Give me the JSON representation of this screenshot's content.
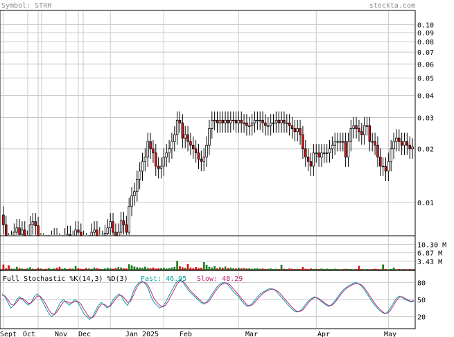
{
  "header": {
    "symbol_label": "Symbol: STRH",
    "brand": "stockta.com"
  },
  "colors": {
    "up_candle": "#ffffff",
    "down_candle": "#e01010",
    "volume_up": "#1e7d1e",
    "volume_down": "#e01010",
    "fast_line": "#00a0a0",
    "slow_line": "#c0207a",
    "grid": "#c8c8c8",
    "header_text": "#8a8a8a"
  },
  "chart_data": [
    {
      "type": "candlestick",
      "title": "",
      "y_scale": "log",
      "ylim": [
        0.0065,
        0.12
      ],
      "y_ticks": [
        {
          "value": 0.1,
          "label": "0.10"
        },
        {
          "value": 0.09,
          "label": "0.09"
        },
        {
          "value": 0.08,
          "label": "0.08"
        },
        {
          "value": 0.07,
          "label": "0.07"
        },
        {
          "value": 0.06,
          "label": "0.06"
        },
        {
          "value": 0.05,
          "label": "0.05"
        },
        {
          "value": 0.04,
          "label": "0.04"
        },
        {
          "value": 0.03,
          "label": "0.03"
        },
        {
          "value": 0.02,
          "label": "0.02"
        },
        {
          "value": 0.01,
          "label": "0.01"
        }
      ],
      "x_labels": [
        "Sept",
        "Oct",
        "Nov",
        "Dec",
        "Jan 2025",
        "Feb",
        "Mar",
        "Apr",
        "May"
      ],
      "grid": true,
      "series": {
        "open": [
          0.0085,
          0.0075,
          0.006,
          0.0055,
          0.0062,
          0.0068,
          0.0072,
          0.0066,
          0.007,
          0.0058,
          0.0062,
          0.0075,
          0.0078,
          0.0074,
          0.0058,
          0.006,
          0.0054,
          0.0052,
          0.0054,
          0.0062,
          0.0064,
          0.006,
          0.0054,
          0.0056,
          0.0064,
          0.0066,
          0.0055,
          0.0062,
          0.007,
          0.0068,
          0.0062,
          0.006,
          0.0056,
          0.0058,
          0.0068,
          0.007,
          0.0065,
          0.006,
          0.0062,
          0.0067,
          0.0072,
          0.0078,
          0.0068,
          0.0062,
          0.0068,
          0.0079,
          0.0075,
          0.0068,
          0.0095,
          0.0109,
          0.0115,
          0.0135,
          0.015,
          0.017,
          0.018,
          0.022,
          0.02,
          0.019,
          0.016,
          0.0155,
          0.016,
          0.018,
          0.019,
          0.02,
          0.022,
          0.024,
          0.029,
          0.028,
          0.023,
          0.024,
          0.022,
          0.021,
          0.02,
          0.019,
          0.0175,
          0.017,
          0.018,
          0.021,
          0.026,
          0.029,
          0.029,
          0.028,
          0.029,
          0.028,
          0.029,
          0.028,
          0.029,
          0.029,
          0.028,
          0.029,
          0.028,
          0.028,
          0.027,
          0.027,
          0.028,
          0.029,
          0.029,
          0.029,
          0.028,
          0.027,
          0.027,
          0.028,
          0.028,
          0.029,
          0.028,
          0.029,
          0.028,
          0.028,
          0.027,
          0.026,
          0.025,
          0.026,
          0.024,
          0.02,
          0.018,
          0.017,
          0.016,
          0.019,
          0.019,
          0.018,
          0.019,
          0.019,
          0.019,
          0.02,
          0.021,
          0.022,
          0.022,
          0.022,
          0.022,
          0.018,
          0.022,
          0.026,
          0.027,
          0.026,
          0.025,
          0.024,
          0.027,
          0.027,
          0.022,
          0.022,
          0.021,
          0.018,
          0.016,
          0.016,
          0.015,
          0.017,
          0.02,
          0.022,
          0.023,
          0.022,
          0.021,
          0.022,
          0.021,
          0.02
        ],
        "close": [
          0.0075,
          0.006,
          0.0055,
          0.0062,
          0.0068,
          0.0072,
          0.0066,
          0.007,
          0.0058,
          0.0062,
          0.0075,
          0.0078,
          0.0074,
          0.0058,
          0.006,
          0.0054,
          0.0052,
          0.0054,
          0.0062,
          0.0064,
          0.006,
          0.0054,
          0.0056,
          0.0064,
          0.0066,
          0.0055,
          0.0062,
          0.007,
          0.0068,
          0.0062,
          0.006,
          0.0056,
          0.0058,
          0.0068,
          0.007,
          0.0065,
          0.006,
          0.0062,
          0.0067,
          0.0072,
          0.0078,
          0.0068,
          0.0062,
          0.0068,
          0.0079,
          0.0075,
          0.0068,
          0.0095,
          0.0109,
          0.0115,
          0.0135,
          0.015,
          0.017,
          0.018,
          0.022,
          0.02,
          0.019,
          0.016,
          0.0155,
          0.016,
          0.018,
          0.019,
          0.02,
          0.022,
          0.024,
          0.029,
          0.028,
          0.023,
          0.024,
          0.022,
          0.021,
          0.02,
          0.019,
          0.0175,
          0.017,
          0.018,
          0.021,
          0.026,
          0.029,
          0.029,
          0.028,
          0.029,
          0.028,
          0.029,
          0.028,
          0.029,
          0.029,
          0.028,
          0.029,
          0.028,
          0.028,
          0.027,
          0.027,
          0.028,
          0.029,
          0.029,
          0.029,
          0.028,
          0.027,
          0.027,
          0.028,
          0.028,
          0.029,
          0.028,
          0.029,
          0.028,
          0.028,
          0.027,
          0.026,
          0.025,
          0.026,
          0.024,
          0.02,
          0.018,
          0.017,
          0.016,
          0.019,
          0.019,
          0.018,
          0.019,
          0.019,
          0.019,
          0.02,
          0.021,
          0.022,
          0.022,
          0.022,
          0.022,
          0.018,
          0.022,
          0.026,
          0.027,
          0.026,
          0.025,
          0.024,
          0.027,
          0.027,
          0.022,
          0.022,
          0.021,
          0.018,
          0.016,
          0.016,
          0.015,
          0.017,
          0.02,
          0.022,
          0.023,
          0.022,
          0.021,
          0.022,
          0.021,
          0.02,
          0.0205
        ]
      }
    },
    {
      "type": "bar",
      "title": "",
      "y_ticks": [
        {
          "value": 10.3,
          "label": "10.30 M"
        },
        {
          "value": 6.87,
          "label": "6.87 M"
        },
        {
          "value": 3.43,
          "label": "3.43 M"
        }
      ],
      "ylim": [
        0,
        13.5
      ],
      "values": [
        2.1,
        0.6,
        1.8,
        0.5,
        0.4,
        1.2,
        0.7,
        0.5,
        0.3,
        0.6,
        1.0,
        0.4,
        0.3,
        0.8,
        0.5,
        0.3,
        0.4,
        0.6,
        0.3,
        0.5,
        0.8,
        1.2,
        0.4,
        0.6,
        0.3,
        0.5,
        0.4,
        1.5,
        0.6,
        0.4,
        0.3,
        0.7,
        0.5,
        0.4,
        0.9,
        0.6,
        0.4,
        0.3,
        0.5,
        0.8,
        0.6,
        0.4,
        0.7,
        1.1,
        0.9,
        0.6,
        0.5,
        2.2,
        1.8,
        1.3,
        1.0,
        0.9,
        0.8,
        1.2,
        0.7,
        0.6,
        0.9,
        0.5,
        0.6,
        0.7,
        0.8,
        0.5,
        0.6,
        0.9,
        1.2,
        3.6,
        1.4,
        1.0,
        0.8,
        2.3,
        0.9,
        0.6,
        1.1,
        0.7,
        0.8,
        3.1,
        2.0,
        1.2,
        0.9,
        1.5,
        0.6,
        1.0,
        0.8,
        1.3,
        0.7,
        0.9,
        0.6,
        0.5,
        0.8,
        0.6,
        0.7,
        0.5,
        0.6,
        0.4,
        0.5,
        0.6,
        0.4,
        0.5,
        0.3,
        0.4,
        0.5,
        0.3,
        0.4,
        0.3,
        2.0,
        0.4,
        0.3,
        0.5,
        0.4,
        0.3,
        0.4,
        0.3,
        1.1,
        0.4,
        0.3,
        0.5,
        0.3,
        0.4,
        0.3,
        0.5,
        0.3,
        0.4,
        0.3,
        0.3,
        0.4,
        0.3,
        0.2,
        0.3,
        0.4,
        0.3,
        0.3,
        0.2,
        0.3,
        1.6,
        0.3,
        0.2,
        0.3,
        0.2,
        0.3,
        0.4,
        0.3,
        0.2,
        2.1,
        0.3,
        0.2,
        0.3,
        0.9,
        0.2,
        0.3,
        0.2,
        0.3,
        0.2,
        0.3
      ]
    },
    {
      "type": "line",
      "title": "Full Stochastic %K(14,3) %D(3)",
      "fast_label": "Fast: 46.95",
      "slow_label": "Slow: 48.29",
      "ylim": [
        0,
        100
      ],
      "y_ticks": [
        {
          "value": 80,
          "label": "80"
        },
        {
          "value": 50,
          "label": "50"
        },
        {
          "value": 20,
          "label": "20"
        }
      ],
      "series": [
        {
          "name": "Fast",
          "values": [
            60,
            55,
            45,
            35,
            40,
            50,
            55,
            50,
            45,
            40,
            45,
            55,
            60,
            55,
            45,
            35,
            25,
            20,
            25,
            35,
            45,
            50,
            45,
            40,
            45,
            50,
            45,
            35,
            25,
            20,
            15,
            20,
            30,
            40,
            45,
            40,
            35,
            40,
            50,
            55,
            60,
            55,
            45,
            40,
            50,
            65,
            75,
            80,
            82,
            78,
            70,
            55,
            45,
            40,
            35,
            38,
            45,
            55,
            65,
            75,
            82,
            85,
            80,
            72,
            65,
            60,
            55,
            50,
            45,
            42,
            45,
            52,
            60,
            68,
            75,
            78,
            80,
            78,
            72,
            65,
            60,
            55,
            48,
            42,
            38,
            40,
            45,
            52,
            58,
            62,
            65,
            68,
            70,
            68,
            64,
            58,
            52,
            46,
            40,
            35,
            30,
            28,
            30,
            35,
            42,
            48,
            52,
            55,
            52,
            48,
            44,
            40,
            38,
            42,
            48,
            55,
            62,
            68,
            72,
            75,
            78,
            80,
            78,
            74,
            68,
            60,
            52,
            44,
            38,
            32,
            28,
            25,
            28,
            35,
            44,
            52,
            56,
            54,
            50,
            48,
            46,
            47
          ]
        },
        {
          "name": "Slow",
          "values": [
            58,
            56,
            50,
            42,
            40,
            45,
            52,
            52,
            48,
            43,
            44,
            50,
            56,
            56,
            50,
            42,
            32,
            25,
            24,
            30,
            38,
            46,
            47,
            44,
            44,
            47,
            47,
            42,
            33,
            25,
            18,
            18,
            25,
            35,
            42,
            42,
            38,
            38,
            45,
            52,
            57,
            57,
            52,
            45,
            47,
            58,
            70,
            78,
            81,
            80,
            75,
            64,
            52,
            45,
            40,
            37,
            40,
            48,
            58,
            68,
            78,
            83,
            82,
            76,
            69,
            63,
            58,
            53,
            48,
            44,
            44,
            48,
            56,
            64,
            71,
            76,
            79,
            79,
            76,
            70,
            64,
            58,
            52,
            46,
            40,
            39,
            42,
            48,
            54,
            59,
            63,
            66,
            68,
            68,
            66,
            62,
            56,
            50,
            44,
            38,
            33,
            29,
            29,
            32,
            38,
            45,
            50,
            54,
            53,
            50,
            46,
            42,
            39,
            40,
            45,
            52,
            59,
            65,
            70,
            73,
            76,
            78,
            78,
            76,
            71,
            64,
            56,
            48,
            41,
            35,
            30,
            26,
            26,
            31,
            39,
            48,
            54,
            55,
            52,
            49,
            47,
            48
          ]
        }
      ]
    }
  ]
}
